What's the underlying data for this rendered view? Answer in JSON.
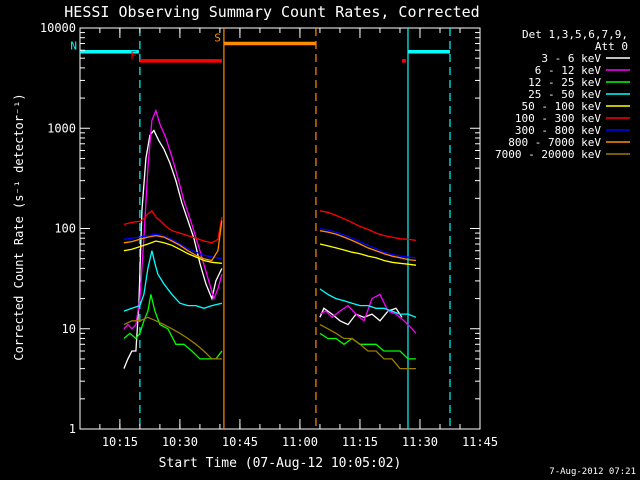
{
  "chart_data": {
    "type": "line",
    "title": "HESSI Observing Summary Count Rates, Corrected",
    "xlabel": "Start Time (07-Aug-12 10:05:02)",
    "ylabel": "Corrected Count Rate (s⁻¹ detector⁻¹)",
    "y_scale": "log",
    "ylim": [
      1,
      10000
    ],
    "xlim": [
      "10:05:02",
      "11:45:00"
    ],
    "y_ticks": [
      {
        "value": 1,
        "label": "1"
      },
      {
        "value": 10,
        "label": "10"
      },
      {
        "value": 100,
        "label": "100"
      },
      {
        "value": 1000,
        "label": "1000"
      },
      {
        "value": 10000,
        "label": "10000"
      }
    ],
    "x_ticks": [
      {
        "value": "10:15",
        "label": "10:15"
      },
      {
        "value": "10:30",
        "label": "10:30"
      },
      {
        "value": "10:45",
        "label": "10:45"
      },
      {
        "value": "11:00",
        "label": "11:00"
      },
      {
        "value": "11:15",
        "label": "11:15"
      },
      {
        "value": "11:30",
        "label": "11:30"
      },
      {
        "value": "11:45",
        "label": "11:45"
      }
    ],
    "legend": {
      "placement": "right",
      "header": [
        "Det 1,3,5,6,7,9,",
        "Att 0"
      ],
      "entries": [
        {
          "label": "3 - 6 keV",
          "color": "#ffffff"
        },
        {
          "label": "6 - 12 keV",
          "color": "#ff00ff"
        },
        {
          "label": "12 - 25 keV",
          "color": "#00ff00"
        },
        {
          "label": "25 - 50 keV",
          "color": "#00ffff"
        },
        {
          "label": "50 - 100 keV",
          "color": "#ffff00"
        },
        {
          "label": "100 - 300 keV",
          "color": "#ff0000"
        },
        {
          "label": "300 - 800 keV",
          "color": "#0000ff"
        },
        {
          "label": "800 - 7000 keV",
          "color": "#ff8c00"
        },
        {
          "label": "7000 - 20000 keV",
          "color": "#9b7d00"
        }
      ]
    },
    "series": [
      {
        "name": "3 - 6 keV",
        "color": "#ffffff",
        "segments": [
          {
            "x": [
              "10:16:00",
              "10:17:00",
              "10:18:00",
              "10:19:00",
              "10:19:45",
              "10:20:30",
              "10:21:30",
              "10:22:30",
              "10:23:30",
              "10:24:45",
              "10:26:00",
              "10:27:30",
              "10:29:00",
              "10:30:30",
              "10:32:00",
              "10:33:30",
              "10:35:00",
              "10:36:30",
              "10:38:00",
              "10:39:00",
              "10:40:30"
            ],
            "y": [
              4,
              5,
              6,
              6,
              18,
              150,
              500,
              850,
              950,
              750,
              620,
              450,
              300,
              180,
              120,
              80,
              45,
              28,
              20,
              30,
              40
            ]
          },
          {
            "x": [
              "11:05:00",
              "11:06:00",
              "11:08:00",
              "11:10:00",
              "11:12:00",
              "11:14:00",
              "11:16:00",
              "11:18:00",
              "11:20:00",
              "11:22:00",
              "11:24:00",
              "11:25:30"
            ],
            "y": [
              13,
              16,
              14,
              12,
              11,
              14,
              13,
              14,
              12,
              15,
              16,
              13
            ]
          }
        ]
      },
      {
        "name": "6 - 12 keV",
        "color": "#ff00ff",
        "segments": [
          {
            "x": [
              "10:16:00",
              "10:17:00",
              "10:18:00",
              "10:19:00",
              "10:20:00",
              "10:21:00",
              "10:22:00",
              "10:23:00",
              "10:24:00",
              "10:25:00",
              "10:26:30",
              "10:28:00",
              "10:29:30",
              "10:31:00",
              "10:33:00",
              "10:35:00",
              "10:37:00",
              "10:38:30",
              "10:39:30",
              "10:40:30"
            ],
            "y": [
              10,
              11,
              10,
              11,
              20,
              80,
              400,
              1200,
              1500,
              1100,
              800,
              520,
              320,
              190,
              110,
              60,
              32,
              20,
              25,
              35
            ]
          },
          {
            "x": [
              "11:05:00",
              "11:06:30",
              "11:08:00",
              "11:10:00",
              "11:12:00",
              "11:14:00",
              "11:16:00",
              "11:18:00",
              "11:20:00",
              "11:22:00",
              "11:24:00",
              "11:26:00",
              "11:28:00",
              "11:29:00"
            ],
            "y": [
              14,
              15,
              13,
              15,
              17,
              14,
              12,
              20,
              22,
              15,
              14,
              12,
              10,
              9
            ]
          }
        ]
      },
      {
        "name": "12 - 25 keV",
        "color": "#00ff00",
        "segments": [
          {
            "x": [
              "10:16:00",
              "10:17:30",
              "10:19:00",
              "10:20:00",
              "10:21:00",
              "10:22:00",
              "10:22:45",
              "10:23:45",
              "10:25:00",
              "10:27:00",
              "10:29:00",
              "10:31:00",
              "10:33:00",
              "10:35:00",
              "10:37:00",
              "10:39:00",
              "10:40:30"
            ],
            "y": [
              8,
              9,
              8,
              9,
              12,
              15,
              22,
              15,
              11,
              10,
              7,
              7,
              6,
              5,
              5,
              5,
              6
            ]
          },
          {
            "x": [
              "11:05:00",
              "11:07:00",
              "11:09:00",
              "11:11:00",
              "11:13:00",
              "11:15:00",
              "11:17:00",
              "11:19:00",
              "11:21:00",
              "11:23:00",
              "11:25:00",
              "11:27:00",
              "11:29:00"
            ],
            "y": [
              9,
              8,
              8,
              7,
              8,
              7,
              7,
              7,
              6,
              6,
              6,
              5,
              5
            ]
          }
        ]
      },
      {
        "name": "25 - 50 keV",
        "color": "#00ffff",
        "segments": [
          {
            "x": [
              "10:16:00",
              "10:18:00",
              "10:20:00",
              "10:21:00",
              "10:22:00",
              "10:23:00",
              "10:23:45",
              "10:24:30",
              "10:26:00",
              "10:28:00",
              "10:30:00",
              "10:32:00",
              "10:34:00",
              "10:36:00",
              "10:38:00",
              "10:40:30"
            ],
            "y": [
              15,
              16,
              17,
              22,
              40,
              60,
              45,
              35,
              28,
              22,
              18,
              17,
              17,
              16,
              17,
              18
            ]
          },
          {
            "x": [
              "11:05:00",
              "11:07:00",
              "11:09:00",
              "11:11:00",
              "11:13:00",
              "11:15:00",
              "11:17:00",
              "11:19:00",
              "11:21:00",
              "11:23:00",
              "11:25:00",
              "11:27:00",
              "11:29:00"
            ],
            "y": [
              25,
              22,
              20,
              19,
              18,
              17,
              17,
              16,
              16,
              15,
              14,
              14,
              13
            ]
          }
        ]
      },
      {
        "name": "50 - 100 keV",
        "color": "#ffff00",
        "segments": [
          {
            "x": [
              "10:16:00",
              "10:18:00",
              "10:20:00",
              "10:22:00",
              "10:24:00",
              "10:26:00",
              "10:28:00",
              "10:30:00",
              "10:32:00",
              "10:34:00",
              "10:36:00",
              "10:38:00",
              "10:40:30"
            ],
            "y": [
              60,
              62,
              66,
              70,
              75,
              72,
              68,
              62,
              56,
              52,
              48,
              46,
              45
            ]
          },
          {
            "x": [
              "11:05:00",
              "11:07:00",
              "11:09:00",
              "11:11:00",
              "11:13:00",
              "11:15:00",
              "11:17:00",
              "11:19:00",
              "11:21:00",
              "11:23:00",
              "11:25:00",
              "11:27:00",
              "11:29:00"
            ],
            "y": [
              70,
              67,
              64,
              61,
              58,
              56,
              53,
              51,
              48,
              46,
              45,
              44,
              43
            ]
          }
        ]
      },
      {
        "name": "100 - 300 keV",
        "color": "#ff0000",
        "segments": [
          {
            "x": [
              "10:16:00",
              "10:18:00",
              "10:20:00",
              "10:21:00",
              "10:22:00",
              "10:23:00",
              "10:24:00",
              "10:25:00",
              "10:26:30",
              "10:28:00",
              "10:30:00",
              "10:32:00",
              "10:34:00",
              "10:36:00",
              "10:38:00",
              "10:39:30",
              "10:40:30"
            ],
            "y": [
              110,
              115,
              118,
              125,
              140,
              150,
              130,
              120,
              105,
              95,
              90,
              85,
              80,
              75,
              72,
              78,
              130
            ]
          },
          {
            "x": [
              "11:05:00",
              "11:07:00",
              "11:09:00",
              "11:11:00",
              "11:13:00",
              "11:15:00",
              "11:17:00",
              "11:19:00",
              "11:21:00",
              "11:23:00",
              "11:25:00",
              "11:27:00",
              "11:29:00"
            ],
            "y": [
              150,
              145,
              135,
              125,
              115,
              105,
              98,
              90,
              85,
              82,
              79,
              78,
              76
            ]
          }
        ]
      },
      {
        "name": "300 - 800 keV",
        "color": "#0000ff",
        "segments": [
          {
            "x": [
              "10:16:00",
              "10:18:00",
              "10:20:00",
              "10:22:00",
              "10:24:00",
              "10:26:00",
              "10:28:00",
              "10:30:00",
              "10:32:00",
              "10:34:00",
              "10:36:00",
              "10:38:00",
              "10:40:30"
            ],
            "y": [
              78,
              80,
              82,
              85,
              88,
              84,
              78,
              70,
              63,
              58,
              54,
              52,
              50
            ]
          },
          {
            "x": [
              "11:05:00",
              "11:07:00",
              "11:09:00",
              "11:11:00",
              "11:13:00",
              "11:15:00",
              "11:17:00",
              "11:19:00",
              "11:21:00",
              "11:23:00",
              "11:25:00",
              "11:27:00",
              "11:29:00"
            ],
            "y": [
              100,
              96,
              92,
              86,
              80,
              74,
              68,
              63,
              58,
              55,
              53,
              52,
              51
            ]
          }
        ]
      },
      {
        "name": "800 - 7000 keV",
        "color": "#ff8c00",
        "segments": [
          {
            "x": [
              "10:16:00",
              "10:18:00",
              "10:20:00",
              "10:22:00",
              "10:24:00",
              "10:26:00",
              "10:28:00",
              "10:30:00",
              "10:32:00",
              "10:34:00",
              "10:36:00",
              "10:38:00",
              "10:39:30",
              "10:40:30"
            ],
            "y": [
              72,
              74,
              78,
              82,
              85,
              82,
              75,
              68,
              60,
              54,
              50,
              48,
              60,
              120
            ]
          },
          {
            "x": [
              "11:05:00",
              "11:07:00",
              "11:09:00",
              "11:11:00",
              "11:13:00",
              "11:15:00",
              "11:17:00",
              "11:19:00",
              "11:21:00",
              "11:23:00",
              "11:25:00",
              "11:27:00",
              "11:29:00"
            ],
            "y": [
              95,
              92,
              88,
              82,
              76,
              70,
              64,
              60,
              56,
              53,
              51,
              49,
              48
            ]
          }
        ]
      },
      {
        "name": "7000 - 20000 keV",
        "color": "#9b7d00",
        "segments": [
          {
            "x": [
              "10:16:00",
              "10:18:00",
              "10:20:00",
              "10:22:00",
              "10:24:00",
              "10:26:00",
              "10:28:00",
              "10:30:00",
              "10:32:00",
              "10:34:00",
              "10:36:00",
              "10:38:00",
              "10:40:30"
            ],
            "y": [
              11,
              12,
              12,
              13,
              12,
              11,
              10,
              9,
              8,
              7,
              6,
              5,
              5
            ]
          },
          {
            "x": [
              "11:05:00",
              "11:07:00",
              "11:09:00",
              "11:11:00",
              "11:13:00",
              "11:15:00",
              "11:17:00",
              "11:19:00",
              "11:21:00",
              "11:23:00",
              "11:25:00",
              "11:27:00",
              "11:29:00"
            ],
            "y": [
              11,
              10,
              9,
              8,
              8,
              7,
              6,
              6,
              5,
              5,
              4,
              4,
              4
            ]
          }
        ]
      }
    ],
    "annotations": {
      "vlines": [
        {
          "x": "10:20:00",
          "color": "#00ffff",
          "dash": true
        },
        {
          "x": "10:41:00",
          "color": "#ff8c00",
          "dash": false
        },
        {
          "x": "11:04:00",
          "color": "#ff8c00",
          "dash": true
        },
        {
          "x": "11:27:00",
          "color": "#00ffff",
          "dash": false
        },
        {
          "x": "11:37:30",
          "color": "#00ffff",
          "dash": true
        }
      ],
      "bars": [
        {
          "label": "N",
          "color": "#00ffff",
          "y": 5800,
          "ranges": [
            [
              "10:05:02",
              "10:19:45"
            ],
            [
              "11:27:00",
              "11:37:30"
            ]
          ]
        },
        {
          "label": "F",
          "color": "#ff0000",
          "y": 4700,
          "ranges": [
            [
              "10:20:00",
              "10:40:30"
            ],
            [
              "11:25:30",
              "11:26:30"
            ]
          ]
        },
        {
          "label": "S",
          "color": "#ff8c00",
          "y": 7000,
          "ranges": [
            [
              "10:41:00",
              "11:04:00"
            ]
          ]
        }
      ]
    }
  },
  "footer": {
    "timestamp": "7-Aug-2012 07:21"
  }
}
